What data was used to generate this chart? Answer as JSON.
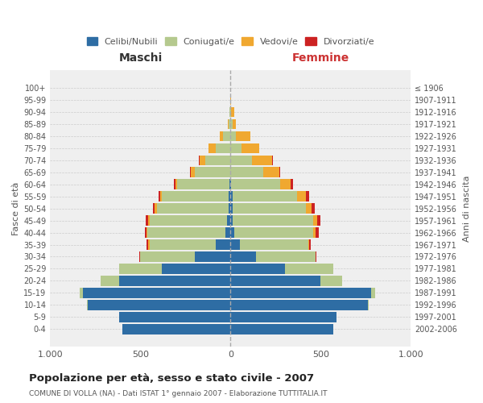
{
  "age_groups": [
    "0-4",
    "5-9",
    "10-14",
    "15-19",
    "20-24",
    "25-29",
    "30-34",
    "35-39",
    "40-44",
    "45-49",
    "50-54",
    "55-59",
    "60-64",
    "65-69",
    "70-74",
    "75-79",
    "80-84",
    "85-89",
    "90-94",
    "95-99",
    "100+"
  ],
  "birth_years": [
    "2002-2006",
    "1997-2001",
    "1992-1996",
    "1987-1991",
    "1982-1986",
    "1977-1981",
    "1972-1976",
    "1967-1971",
    "1962-1966",
    "1957-1961",
    "1952-1956",
    "1947-1951",
    "1942-1946",
    "1937-1941",
    "1932-1936",
    "1927-1931",
    "1922-1926",
    "1917-1921",
    "1912-1916",
    "1907-1911",
    "≤ 1906"
  ],
  "males": {
    "celibi": [
      600,
      620,
      790,
      820,
      620,
      380,
      200,
      80,
      30,
      20,
      10,
      10,
      5,
      0,
      0,
      0,
      0,
      0,
      0,
      0,
      0
    ],
    "coniugati": [
      0,
      0,
      5,
      15,
      100,
      240,
      300,
      370,
      430,
      430,
      400,
      370,
      290,
      200,
      140,
      80,
      40,
      10,
      5,
      0,
      0
    ],
    "vedovi": [
      0,
      0,
      0,
      0,
      0,
      0,
      0,
      5,
      5,
      5,
      10,
      10,
      10,
      20,
      30,
      40,
      20,
      5,
      3,
      0,
      0
    ],
    "divorziati": [
      0,
      0,
      0,
      0,
      0,
      0,
      5,
      10,
      10,
      15,
      10,
      10,
      10,
      5,
      5,
      0,
      0,
      0,
      0,
      0,
      0
    ]
  },
  "females": {
    "nubili": [
      570,
      590,
      760,
      780,
      500,
      300,
      140,
      50,
      20,
      10,
      10,
      10,
      5,
      0,
      0,
      0,
      0,
      0,
      0,
      0,
      0
    ],
    "coniugate": [
      0,
      0,
      5,
      20,
      120,
      270,
      330,
      380,
      440,
      450,
      410,
      360,
      270,
      180,
      120,
      60,
      30,
      10,
      5,
      0,
      0
    ],
    "vedove": [
      0,
      0,
      0,
      0,
      0,
      0,
      0,
      5,
      10,
      20,
      30,
      50,
      60,
      90,
      110,
      100,
      80,
      20,
      15,
      5,
      0
    ],
    "divorziate": [
      0,
      0,
      0,
      0,
      0,
      0,
      5,
      10,
      20,
      20,
      15,
      15,
      10,
      5,
      5,
      0,
      0,
      0,
      0,
      0,
      0
    ]
  },
  "colors": {
    "celibi_nubili": "#2e6da4",
    "coniugati": "#b5c98e",
    "vedovi": "#f0a830",
    "divorziati": "#cc2222"
  },
  "title": "Popolazione per età, sesso e stato civile - 2007",
  "subtitle": "COMUNE DI VOLLA (NA) - Dati ISTAT 1° gennaio 2007 - Elaborazione TUTTITALIA.IT",
  "xlabel_left": "Maschi",
  "xlabel_right": "Femmine",
  "ylabel_left": "Fasce di età",
  "ylabel_right": "Anni di nascita",
  "xlim": 1000,
  "background_color": "#ffffff",
  "plot_bg_color": "#efefef",
  "grid_color": "#cccccc",
  "header_color": "#333333",
  "femmine_color": "#cc3333"
}
